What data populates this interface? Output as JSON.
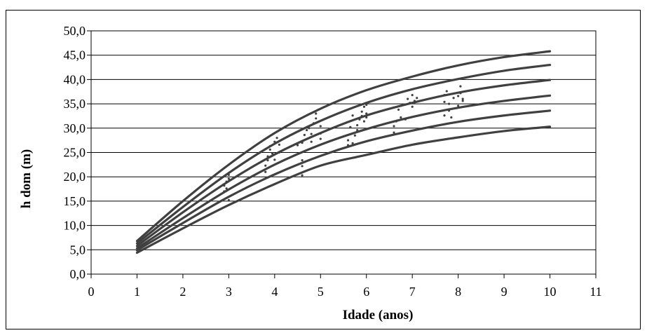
{
  "chart_data": {
    "type": "line",
    "title": "",
    "xlabel": "Idade (anos)",
    "ylabel": "h dom (m)",
    "xlim": [
      0,
      11
    ],
    "ylim": [
      0,
      50
    ],
    "xticks": [
      0,
      1,
      2,
      3,
      4,
      5,
      6,
      7,
      8,
      9,
      10,
      11
    ],
    "yticks": [
      0,
      5,
      10,
      15,
      20,
      25,
      30,
      35,
      40,
      45,
      50
    ],
    "ytick_labels": [
      "0,0",
      "5,0",
      "10,0",
      "15,0",
      "20,0",
      "25,0",
      "30,0",
      "35,0",
      "40,0",
      "45,0",
      "50,0"
    ],
    "grid": "horizontal",
    "legend": "none",
    "colors": {
      "curves": "#404040",
      "points": "#404040",
      "grid": "#000000",
      "plot_bg": "#ffffff"
    },
    "series": [
      {
        "x": [
          1,
          2,
          3,
          4,
          5,
          6,
          7,
          8,
          9,
          10
        ],
        "y": [
          6.8,
          15.0,
          22.5,
          29.0,
          34.0,
          37.8,
          40.6,
          42.9,
          44.6,
          45.8
        ]
      },
      {
        "x": [
          1,
          2,
          3,
          4,
          5,
          6,
          7,
          8,
          9,
          10
        ],
        "y": [
          6.3,
          13.8,
          20.8,
          26.8,
          31.5,
          35.2,
          38.0,
          40.1,
          41.8,
          43.0
        ]
      },
      {
        "x": [
          1,
          2,
          3,
          4,
          5,
          6,
          7,
          8,
          9,
          10
        ],
        "y": [
          5.8,
          12.7,
          19.1,
          24.6,
          29.0,
          32.6,
          35.2,
          37.3,
          38.8,
          39.9
        ]
      },
      {
        "x": [
          1,
          2,
          3,
          4,
          5,
          6,
          7,
          8,
          9,
          10
        ],
        "y": [
          5.3,
          11.5,
          17.4,
          22.5,
          26.6,
          29.8,
          32.3,
          34.2,
          35.6,
          36.7
        ]
      },
      {
        "x": [
          1,
          2,
          3,
          4,
          5,
          6,
          7,
          8,
          9,
          10
        ],
        "y": [
          4.9,
          10.5,
          15.9,
          20.5,
          24.3,
          27.3,
          29.5,
          31.3,
          32.6,
          33.6
        ]
      },
      {
        "x": [
          1,
          2,
          3,
          4,
          5,
          6,
          7,
          8,
          9,
          10
        ],
        "y": [
          4.4,
          9.4,
          14.2,
          18.5,
          22.3,
          24.5,
          26.6,
          28.1,
          29.4,
          30.3
        ]
      }
    ],
    "observations": [
      [
        2.9,
        17.0
      ],
      [
        2.9,
        18.2
      ],
      [
        2.95,
        19.0
      ],
      [
        3.0,
        19.6
      ],
      [
        3.0,
        20.4
      ],
      [
        3.0,
        15.2
      ],
      [
        2.95,
        17.6
      ],
      [
        3.8,
        21.0
      ],
      [
        3.8,
        22.3
      ],
      [
        3.85,
        23.4
      ],
      [
        3.85,
        24.2
      ],
      [
        3.9,
        25.6
      ],
      [
        3.9,
        26.3
      ],
      [
        3.95,
        24.8
      ],
      [
        4.0,
        23.5
      ],
      [
        4.0,
        27.2
      ],
      [
        4.05,
        28.0
      ],
      [
        4.1,
        26.6
      ],
      [
        4.1,
        25.0
      ],
      [
        4.5,
        26.5
      ],
      [
        4.6,
        20.3
      ],
      [
        4.6,
        22.2
      ],
      [
        4.6,
        23.4
      ],
      [
        4.6,
        27.0
      ],
      [
        4.65,
        28.6
      ],
      [
        4.7,
        29.6
      ],
      [
        4.75,
        30.0
      ],
      [
        4.8,
        27.2
      ],
      [
        4.8,
        28.8
      ],
      [
        4.85,
        31.0
      ],
      [
        4.9,
        32.0
      ],
      [
        4.9,
        33.0
      ],
      [
        4.95,
        33.8
      ],
      [
        5.0,
        27.8
      ],
      [
        5.0,
        28.9
      ],
      [
        5.0,
        30.4
      ],
      [
        5.6,
        26.5
      ],
      [
        5.6,
        27.5
      ],
      [
        5.65,
        30.2
      ],
      [
        5.7,
        26.9
      ],
      [
        5.7,
        32.6
      ],
      [
        5.75,
        28.5
      ],
      [
        5.8,
        29.6
      ],
      [
        5.8,
        30.6
      ],
      [
        5.85,
        31.8
      ],
      [
        5.9,
        32.5
      ],
      [
        5.9,
        33.4
      ],
      [
        5.95,
        34.4
      ],
      [
        5.95,
        31.4
      ],
      [
        6.0,
        33.0
      ],
      [
        6.0,
        34.8
      ],
      [
        6.0,
        32.2
      ],
      [
        6.6,
        29.1
      ],
      [
        6.6,
        30.4
      ],
      [
        6.65,
        31.4
      ],
      [
        6.7,
        33.8
      ],
      [
        6.75,
        32.2
      ],
      [
        6.8,
        34.8
      ],
      [
        6.85,
        31.8
      ],
      [
        6.9,
        36.0
      ],
      [
        6.95,
        35.2
      ],
      [
        7.0,
        36.8
      ],
      [
        7.0,
        34.4
      ],
      [
        7.05,
        35.6
      ],
      [
        7.1,
        36.2
      ],
      [
        7.7,
        32.6
      ],
      [
        7.7,
        35.4
      ],
      [
        7.7,
        36.8
      ],
      [
        7.75,
        37.6
      ],
      [
        7.8,
        33.6
      ],
      [
        7.8,
        35.0
      ],
      [
        7.85,
        32.2
      ],
      [
        7.9,
        36.2
      ],
      [
        8.0,
        34.6
      ],
      [
        8.0,
        36.6
      ],
      [
        8.05,
        37.2
      ],
      [
        8.05,
        38.6
      ],
      [
        8.1,
        35.6
      ],
      [
        8.1,
        36.0
      ]
    ]
  }
}
